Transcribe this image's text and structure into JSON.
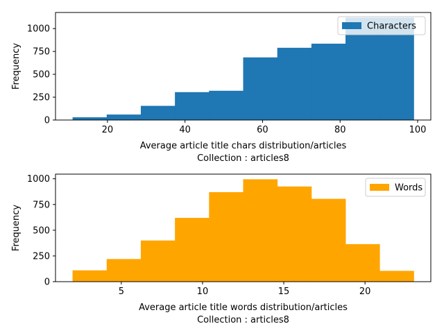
{
  "chart_data": [
    {
      "type": "bar",
      "bar_style": "histogram",
      "color": "#1f77b4",
      "bin_edges": [
        11.0,
        19.8,
        28.6,
        37.4,
        46.2,
        55.0,
        63.8,
        72.6,
        81.4,
        90.2,
        99.0
      ],
      "values": [
        30,
        60,
        155,
        305,
        320,
        685,
        790,
        835,
        1120,
        1120
      ],
      "xlim": [
        6.6,
        103.4
      ],
      "ylim": [
        0,
        1176
      ],
      "xticks": [
        20,
        40,
        60,
        80,
        100
      ],
      "yticks": [
        0,
        250,
        500,
        750,
        1000
      ],
      "xlabel": "Average article title chars distribution/articles",
      "xlabel2": "Collection : articles8",
      "ylabel": "Frequency",
      "legend": [
        "Characters"
      ],
      "legend_position": "top-right",
      "grid": false
    },
    {
      "type": "bar",
      "bar_style": "histogram",
      "color": "#ffa500",
      "bin_edges": [
        2.0,
        4.1,
        6.2,
        8.3,
        10.4,
        12.5,
        14.6,
        16.7,
        18.8,
        20.9,
        23.0
      ],
      "values": [
        110,
        220,
        400,
        620,
        870,
        995,
        925,
        805,
        365,
        105
      ],
      "xlim": [
        0.95,
        24.05
      ],
      "ylim": [
        0,
        1045
      ],
      "xticks": [
        5,
        10,
        15,
        20
      ],
      "yticks": [
        0,
        250,
        500,
        750,
        1000
      ],
      "xlabel": "Average article title words distribution/articles",
      "xlabel2": "Collection : articles8",
      "ylabel": "Frequency",
      "legend": [
        "Words"
      ],
      "legend_position": "top-right",
      "grid": false
    }
  ]
}
